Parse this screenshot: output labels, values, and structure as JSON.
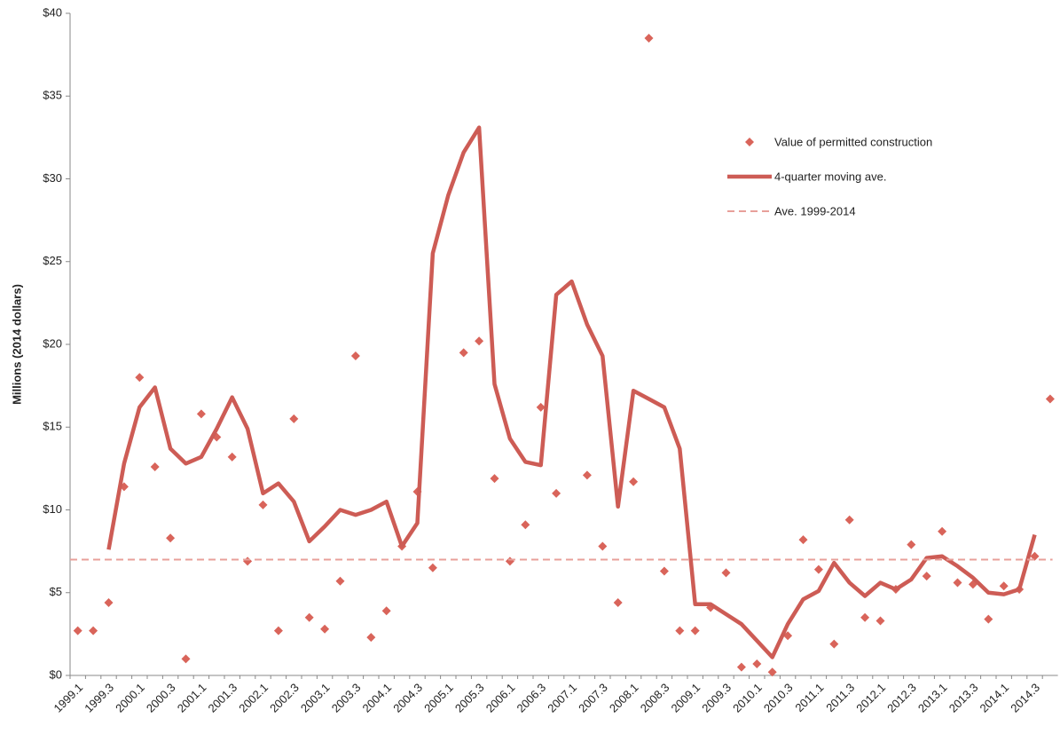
{
  "chart_data": {
    "type": "line",
    "y_label": "Millions (2014 dollars)",
    "categories": [
      "1999.1",
      null,
      "1999.3",
      null,
      "2000.1",
      null,
      "2000.3",
      null,
      "2001.1",
      null,
      "2001.3",
      null,
      "2002.1",
      null,
      "2002.3",
      null,
      "2003.1",
      null,
      "2003.3",
      null,
      "2004.1",
      null,
      "2004.3",
      null,
      "2005.1",
      null,
      "2005.3",
      null,
      "2006.1",
      null,
      "2006.3",
      null,
      "2007.1",
      null,
      "2007.3",
      null,
      "2008.1",
      null,
      "2008.3",
      null,
      "2009.1",
      null,
      "2009.3",
      null,
      "2010.1",
      null,
      "2010.3",
      null,
      "2011.1",
      null,
      "2011.3",
      null,
      "2012.1",
      null,
      "2012.3",
      null,
      "2013.1",
      null,
      "2013.3",
      null,
      "2014.1",
      null,
      "2014.3",
      null
    ],
    "series": [
      {
        "name": "Value of permitted construction",
        "mark": "scatter",
        "color": "#d9645a",
        "values": [
          2.7,
          2.7,
          4.4,
          11.4,
          18.0,
          12.6,
          8.3,
          1.0,
          15.8,
          14.4,
          13.2,
          6.9,
          10.3,
          2.7,
          15.5,
          3.5,
          2.8,
          5.7,
          19.3,
          2.3,
          3.9,
          7.8,
          11.1,
          6.5,
          null,
          19.5,
          20.2,
          11.9,
          6.9,
          9.1,
          16.2,
          11.0,
          null,
          12.1,
          7.8,
          4.4,
          11.7,
          38.5,
          6.3,
          2.7,
          2.7,
          4.1,
          6.2,
          0.5,
          0.7,
          0.2,
          2.4,
          8.2,
          6.4,
          1.9,
          9.4,
          3.5,
          3.3,
          5.2,
          7.9,
          6.0,
          8.7,
          5.6,
          5.5,
          3.4,
          5.4,
          5.2,
          7.2,
          16.7
        ]
      },
      {
        "name": "4-quarter moving ave.",
        "mark": "line",
        "color": "#cd5c55",
        "values": [
          null,
          null,
          7.6,
          12.8,
          16.2,
          17.4,
          13.7,
          12.8,
          13.2,
          14.9,
          16.8,
          14.9,
          11.0,
          11.6,
          10.5,
          8.1,
          9.0,
          10.0,
          9.7,
          10.0,
          10.5,
          7.8,
          9.2,
          25.5,
          29.0,
          31.6,
          33.1,
          17.6,
          14.3,
          12.9,
          12.7,
          23.0,
          23.8,
          21.2,
          19.3,
          10.2,
          17.2,
          16.7,
          16.2,
          13.7,
          4.3,
          4.3,
          3.7,
          3.1,
          2.1,
          1.1,
          3.1,
          4.6,
          5.1,
          6.8,
          5.6,
          4.8,
          5.6,
          5.2,
          5.8,
          7.1,
          7.2,
          6.6,
          5.9,
          5.0,
          4.9,
          5.2,
          8.5,
          null
        ]
      },
      {
        "name": "Ave. 1999-2014",
        "mark": "dashed",
        "color": "#e8a09a",
        "value": 7.0
      }
    ],
    "ylim": [
      0,
      40
    ],
    "yticks": [
      {
        "value": 0,
        "label": "$0"
      },
      {
        "value": 5,
        "label": "$5"
      },
      {
        "value": 10,
        "label": "$10"
      },
      {
        "value": 15,
        "label": "$15"
      },
      {
        "value": 20,
        "label": "$20"
      },
      {
        "value": 25,
        "label": "$25"
      },
      {
        "value": 30,
        "label": "$30"
      },
      {
        "value": 35,
        "label": "$35"
      },
      {
        "value": 40,
        "label": "$40"
      }
    ]
  }
}
